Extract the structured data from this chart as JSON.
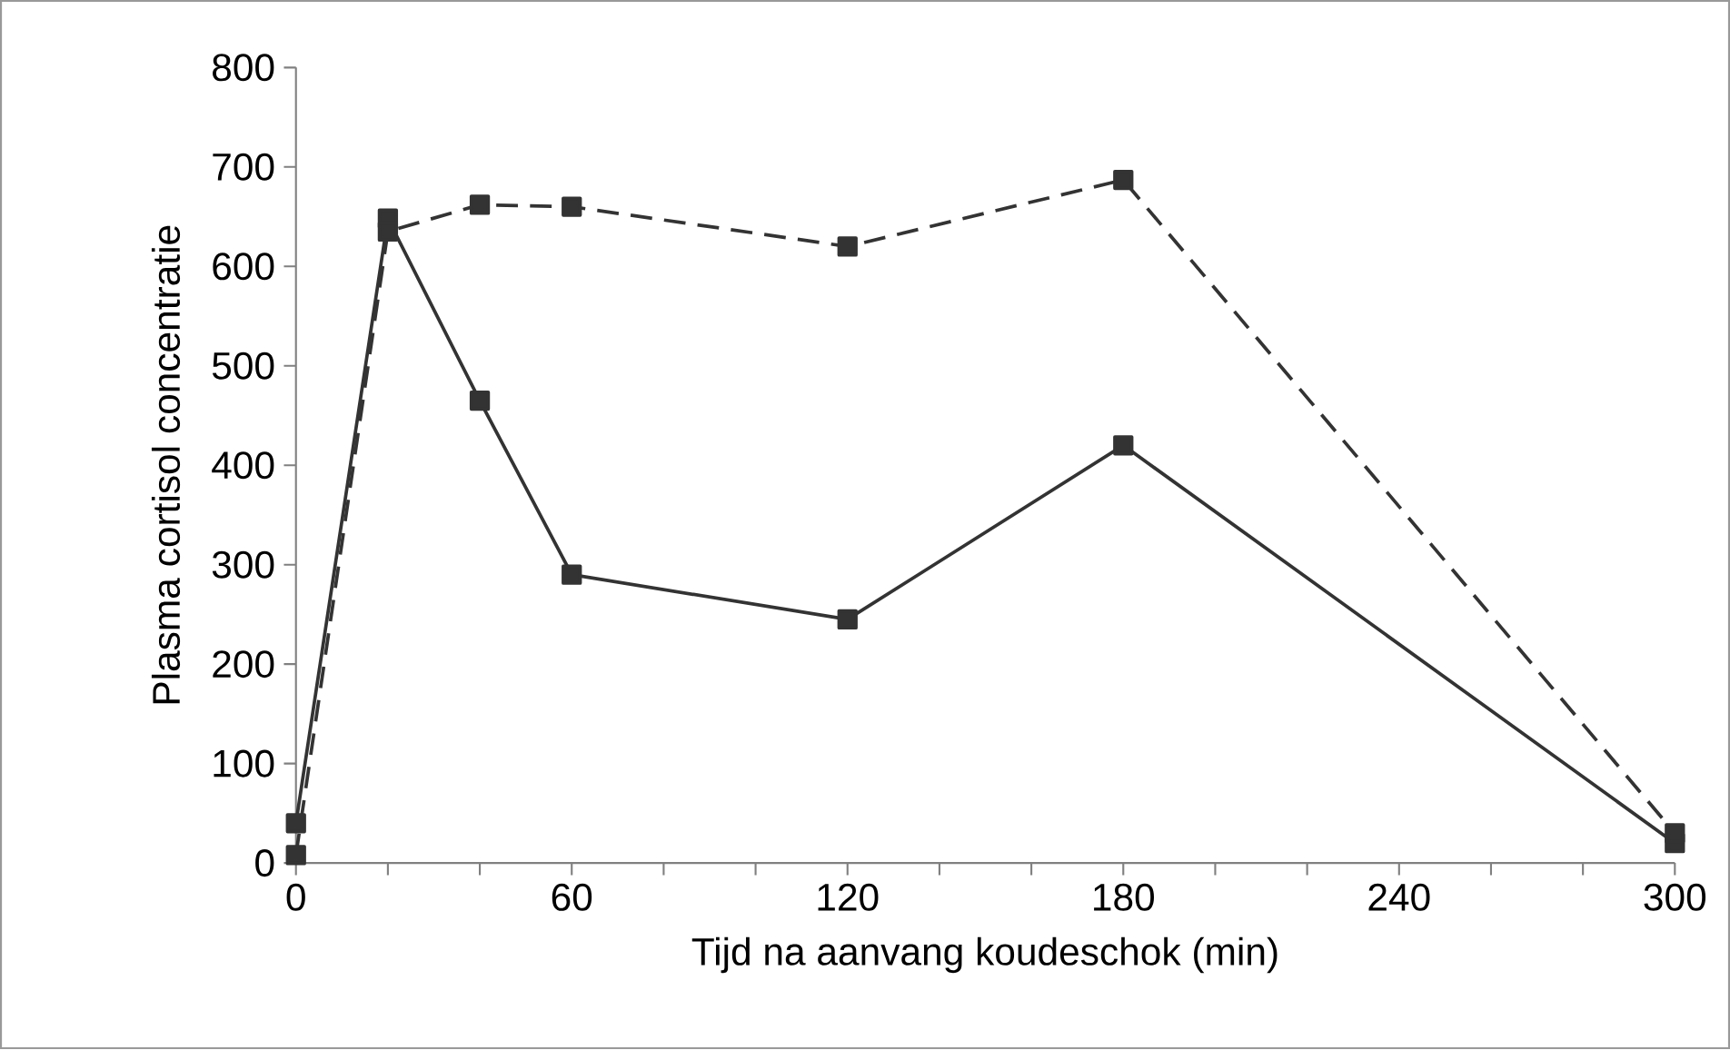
{
  "chart_data": {
    "type": "line",
    "xlabel": "Tijd na aanvang koudeschok (min)",
    "ylabel": "Plasma cortisol concentratie",
    "xlim": [
      0,
      300
    ],
    "ylim": [
      0,
      800
    ],
    "xticks": [
      0,
      {
        "value": 20,
        "label": null
      },
      {
        "value": 40,
        "label": null
      },
      60,
      {
        "value": 80,
        "label": null
      },
      {
        "value": 100,
        "label": null
      },
      120,
      {
        "value": 140,
        "label": null
      },
      {
        "value": 160,
        "label": null
      },
      180,
      {
        "value": 200,
        "label": null
      },
      {
        "value": 220,
        "label": null
      },
      240,
      {
        "value": 260,
        "label": null
      },
      {
        "value": 280,
        "label": null
      },
      300
    ],
    "yticks": [
      0,
      100,
      200,
      300,
      400,
      500,
      600,
      700,
      800
    ],
    "marker": "square",
    "grid": false,
    "series": [
      {
        "color": "#333333",
        "line_style": "solid",
        "x": [
          0,
          20,
          40,
          60,
          120,
          180,
          300
        ],
        "values": [
          40,
          648,
          465,
          290,
          245,
          420,
          20
        ]
      },
      {
        "color": "#333333",
        "line_style": "dashed",
        "x": [
          0,
          20,
          40,
          60,
          120,
          180,
          300
        ],
        "values": [
          8,
          635,
          662,
          660,
          620,
          687,
          30
        ]
      }
    ]
  }
}
